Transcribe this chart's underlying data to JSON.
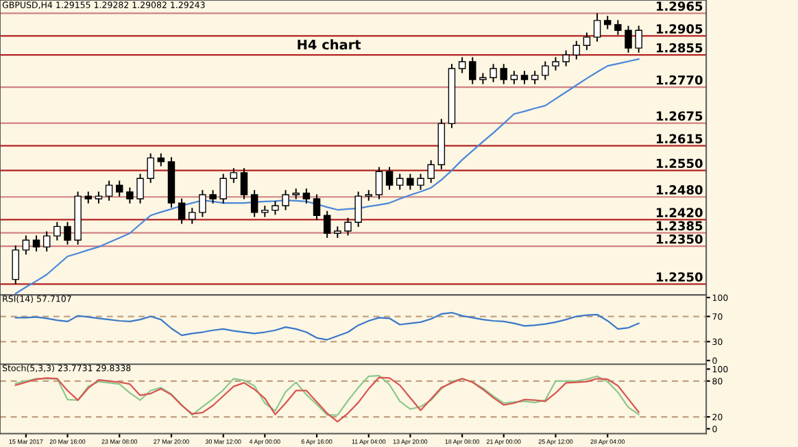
{
  "chart_data": [
    {
      "type": "candlestick",
      "title": "GBPUSD,H4 1.29155 1.29282 1.29082 1.29243",
      "annotations": [
        "H4 chart"
      ],
      "categories": [
        null,
        null,
        null,
        null,
        null,
        null,
        null,
        null,
        null,
        null,
        null,
        null,
        null,
        null,
        null,
        null,
        null,
        null,
        null,
        null,
        null,
        null,
        null,
        null,
        null,
        null,
        null,
        null,
        null,
        null,
        null,
        null,
        null,
        null,
        null,
        null,
        null,
        null,
        null,
        null,
        null,
        null,
        null,
        null,
        null,
        null,
        null,
        null,
        null,
        null,
        null,
        null,
        null,
        null,
        null,
        null,
        null,
        null,
        null,
        null,
        null
      ],
      "ohlc": [
        [
          1.2262,
          1.2352,
          1.225,
          1.234
        ],
        [
          1.234,
          1.2378,
          1.2328,
          1.2366
        ],
        [
          1.2366,
          1.2378,
          1.2336,
          1.2348
        ],
        [
          1.2348,
          1.2389,
          1.2336,
          1.2377
        ],
        [
          1.2377,
          1.2414,
          1.2365,
          1.2402
        ],
        [
          1.2402,
          1.2414,
          1.2354,
          1.2366
        ],
        [
          1.2366,
          1.2494,
          1.2354,
          1.2482
        ],
        [
          1.2482,
          1.2494,
          1.2463,
          1.2475
        ],
        [
          1.2475,
          1.2494,
          1.2463,
          1.2482
        ],
        [
          1.2482,
          1.2523,
          1.247,
          1.2511
        ],
        [
          1.2511,
          1.2523,
          1.2481,
          1.2493
        ],
        [
          1.2493,
          1.2505,
          1.2463,
          1.2475
        ],
        [
          1.2475,
          1.2541,
          1.2463,
          1.2529
        ],
        [
          1.2529,
          1.2595,
          1.2517,
          1.2583
        ],
        [
          1.2583,
          1.2595,
          1.2561,
          1.2573
        ],
        [
          1.2573,
          1.2585,
          1.2452,
          1.2464
        ],
        [
          1.2464,
          1.2476,
          1.2409,
          1.2421
        ],
        [
          1.2421,
          1.2451,
          1.2409,
          1.2439
        ],
        [
          1.2439,
          1.2498,
          1.2427,
          1.2486
        ],
        [
          1.2486,
          1.2498,
          1.2463,
          1.2475
        ],
        [
          1.2475,
          1.2541,
          1.2463,
          1.2529
        ],
        [
          1.2529,
          1.2556,
          1.2517,
          1.2544
        ],
        [
          1.2544,
          1.2556,
          1.2474,
          1.2486
        ],
        [
          1.2486,
          1.2498,
          1.2427,
          1.2439
        ],
        [
          1.2439,
          1.2457,
          1.2427,
          1.2445
        ],
        [
          1.2445,
          1.2469,
          1.2433,
          1.2457
        ],
        [
          1.2457,
          1.2498,
          1.2445,
          1.2486
        ],
        [
          1.2486,
          1.2502,
          1.2474,
          1.249
        ],
        [
          1.249,
          1.2502,
          1.2463,
          1.2475
        ],
        [
          1.2475,
          1.2487,
          1.2419,
          1.2431
        ],
        [
          1.2431,
          1.2443,
          1.2372,
          1.2384
        ],
        [
          1.2384,
          1.2402,
          1.2372,
          1.239
        ],
        [
          1.239,
          1.2425,
          1.2378,
          1.2413
        ],
        [
          1.2413,
          1.2494,
          1.2401,
          1.2482
        ],
        [
          1.2482,
          1.2498,
          1.247,
          1.2486
        ],
        [
          1.2486,
          1.2559,
          1.2474,
          1.2547
        ],
        [
          1.2547,
          1.2559,
          1.2499,
          1.2511
        ],
        [
          1.2511,
          1.2541,
          1.2499,
          1.2529
        ],
        [
          1.2529,
          1.2541,
          1.2499,
          1.2511
        ],
        [
          1.2511,
          1.2541,
          1.2499,
          1.2529
        ],
        [
          1.2529,
          1.2577,
          1.2517,
          1.2565
        ],
        [
          1.2565,
          1.2686,
          1.2553,
          1.2674
        ],
        [
          1.2674,
          1.2831,
          1.2662,
          1.2819
        ],
        [
          1.2819,
          1.2849,
          1.2807,
          1.2837
        ],
        [
          1.2837,
          1.2849,
          1.2778,
          1.279
        ],
        [
          1.279,
          1.2807,
          1.2778,
          1.2795
        ],
        [
          1.2795,
          1.2831,
          1.2783,
          1.2819
        ],
        [
          1.2819,
          1.2831,
          1.2778,
          1.279
        ],
        [
          1.279,
          1.2813,
          1.2778,
          1.2801
        ],
        [
          1.2801,
          1.2813,
          1.2778,
          1.279
        ],
        [
          1.279,
          1.2813,
          1.2778,
          1.2801
        ],
        [
          1.2801,
          1.2838,
          1.2789,
          1.2826
        ],
        [
          1.2826,
          1.2849,
          1.2814,
          1.2837
        ],
        [
          1.2837,
          1.2867,
          1.2825,
          1.2855
        ],
        [
          1.2855,
          1.2892,
          1.2843,
          1.288
        ],
        [
          1.288,
          1.2914,
          1.2868,
          1.2902
        ],
        [
          1.2902,
          1.2965,
          1.289,
          1.2946
        ],
        [
          1.2946,
          1.2958,
          1.2923,
          1.2935
        ],
        [
          1.2935,
          1.2947,
          1.2908,
          1.292
        ],
        [
          1.292,
          1.2932,
          1.2861,
          1.2873
        ],
        [
          1.2873,
          1.2932,
          1.2861,
          1.292
        ]
      ],
      "series": [
        {
          "type": "line",
          "color": "#4a86d8",
          "values": [
            1.2225,
            1.2242,
            1.2258,
            1.2275,
            1.2299,
            1.2323,
            1.2331,
            1.234,
            1.2348,
            1.236,
            1.2372,
            1.2384,
            1.2408,
            1.2431,
            1.244,
            1.2448,
            1.2457,
            1.2464,
            1.2471,
            1.2468,
            1.2464,
            1.2464,
            1.2464,
            1.2466,
            1.2468,
            1.2469,
            1.2471,
            1.247,
            1.2468,
            1.2461,
            1.2453,
            1.2446,
            1.2448,
            1.245,
            1.2455,
            1.2459,
            1.2464,
            1.2475,
            1.2485,
            1.2494,
            1.2504,
            1.2525,
            1.255,
            1.2578,
            1.2602,
            1.2626,
            1.2649,
            1.2674,
            1.2699,
            1.2706,
            1.2714,
            1.2721,
            1.2739,
            1.2757,
            1.2775,
            1.2793,
            1.281,
            1.2826,
            1.2832,
            1.2838,
            1.2844
          ]
        }
      ],
      "ylim": [
        1.2221,
        1.3
      ],
      "ref_lines": [
        {
          "axis": "y",
          "value": 1.2965,
          "label": "1.2965",
          "color": "#d08080"
        },
        {
          "axis": "y",
          "value": 1.2905,
          "label": "1.2905",
          "color": "#b22222"
        },
        {
          "axis": "y",
          "value": 1.2855,
          "label": "1.2855",
          "color": "#b22222"
        },
        {
          "axis": "y",
          "value": 1.277,
          "label": "1.2770",
          "color": "#d08080"
        },
        {
          "axis": "y",
          "value": 1.2675,
          "label": "1.2675",
          "color": "#d08080"
        },
        {
          "axis": "y",
          "value": 1.2615,
          "label": "1.2615",
          "color": "#b22222"
        },
        {
          "axis": "y",
          "value": 1.255,
          "label": "1.2550",
          "color": "#b22222"
        },
        {
          "axis": "y",
          "value": 1.248,
          "label": "1.2480",
          "color": "#d08080"
        },
        {
          "axis": "y",
          "value": 1.242,
          "label": "1.2420",
          "color": "#b22222"
        },
        {
          "axis": "y",
          "value": 1.2385,
          "label": "1.2385",
          "color": "#d08080"
        },
        {
          "axis": "y",
          "value": 1.235,
          "label": "1.2350",
          "color": "#d08080"
        },
        {
          "axis": "y",
          "value": 1.225,
          "label": "1.2250",
          "color": "#b22222"
        }
      ],
      "tick_labels": false
    },
    {
      "type": "line",
      "title": "RSI(14) 57.7107",
      "categories": [
        null,
        null,
        null,
        null,
        null,
        null,
        null,
        null,
        null,
        null,
        null,
        null,
        null,
        null,
        null,
        null,
        null,
        null,
        null,
        null,
        null,
        null,
        null,
        null,
        null,
        null,
        null,
        null,
        null,
        null,
        null,
        null,
        null,
        null,
        null,
        null,
        null,
        null,
        null,
        null,
        null,
        null,
        null,
        null,
        null,
        null,
        null,
        null,
        null,
        null,
        null,
        null,
        null,
        null,
        null,
        null,
        null,
        null,
        null,
        null,
        null
      ],
      "series": [
        {
          "color": "#3a78c8",
          "values": [
            68,
            68,
            69,
            67,
            64,
            62,
            71,
            69,
            67,
            65,
            63,
            62,
            65,
            70,
            65,
            51,
            40,
            43,
            45,
            48,
            50,
            47,
            45,
            43,
            45,
            48,
            53,
            50,
            45,
            36,
            33,
            39,
            45,
            56,
            63,
            68,
            67,
            57,
            59,
            61,
            66,
            74,
            76,
            71,
            68,
            65,
            63,
            62,
            59,
            55,
            56,
            58,
            61,
            65,
            70,
            72,
            73,
            63,
            50,
            52,
            59
          ]
        }
      ],
      "ylim": [
        -6,
        104
      ],
      "yticks": [
        0,
        30,
        70,
        100
      ],
      "ref_lines": [
        {
          "axis": "y",
          "value": 70,
          "color": "#c0a080",
          "line_style": "dashed"
        },
        {
          "axis": "y",
          "value": 30,
          "color": "#c0a080",
          "line_style": "dashed"
        }
      ],
      "tick_labels": "y"
    },
    {
      "type": "line",
      "title": "Stoch(5,3,3) 23.7731 29.8338",
      "categories": [
        null,
        "15 Mar 2017",
        null,
        null,
        null,
        "20 Mar 16:00",
        null,
        null,
        null,
        null,
        "23 Mar 08:00",
        null,
        null,
        null,
        null,
        "27 Mar 20:00",
        null,
        null,
        null,
        null,
        "30 Mar 12:00",
        null,
        null,
        null,
        "4 Apr 00:00",
        null,
        null,
        null,
        null,
        "6 Apr 16:00",
        null,
        null,
        null,
        null,
        "11 Apr 04:00",
        null,
        null,
        null,
        "13 Apr 20:00",
        null,
        null,
        null,
        null,
        "18 Apr 08:00",
        null,
        null,
        null,
        "21 Apr 00:00",
        null,
        null,
        null,
        null,
        "25 Apr 12:00",
        null,
        null,
        null,
        null,
        "28 Apr 04:00",
        null,
        null,
        null
      ],
      "series": [
        {
          "color": "#8cc88c",
          "values": [
            76,
            80,
            84,
            84,
            84,
            49,
            48,
            71,
            79,
            77,
            75,
            60,
            48,
            64,
            69,
            58,
            40,
            23,
            37,
            50,
            65,
            84,
            81,
            72,
            43,
            30,
            62,
            78,
            57,
            41,
            23,
            23,
            47,
            69,
            88,
            89,
            74,
            46,
            33,
            37,
            48,
            67,
            79,
            84,
            78,
            68,
            55,
            43,
            45,
            46,
            44,
            48,
            80,
            80,
            80,
            83,
            88,
            79,
            61,
            36,
            24
          ]
        },
        {
          "color": "#d9534f",
          "values": [
            73,
            78,
            83,
            85,
            84,
            64,
            48,
            68,
            82,
            80,
            78,
            75,
            56,
            59,
            67,
            57,
            39,
            25,
            27,
            39,
            55,
            71,
            77,
            66,
            51,
            24,
            43,
            64,
            64,
            45,
            26,
            12,
            26,
            44,
            67,
            86,
            85,
            73,
            52,
            31,
            50,
            69,
            77,
            84,
            78,
            66,
            52,
            40,
            43,
            49,
            48,
            46,
            60,
            77,
            78,
            79,
            84,
            83,
            72,
            50,
            28
          ]
        }
      ],
      "ylim": [
        -8,
        108
      ],
      "yticks": [
        0,
        20,
        80,
        100
      ],
      "ref_lines": [
        {
          "axis": "y",
          "value": 80,
          "color": "#c0a080",
          "line_style": "dashed"
        },
        {
          "axis": "y",
          "value": 20,
          "color": "#c0a080",
          "line_style": "dashed"
        }
      ]
    }
  ]
}
